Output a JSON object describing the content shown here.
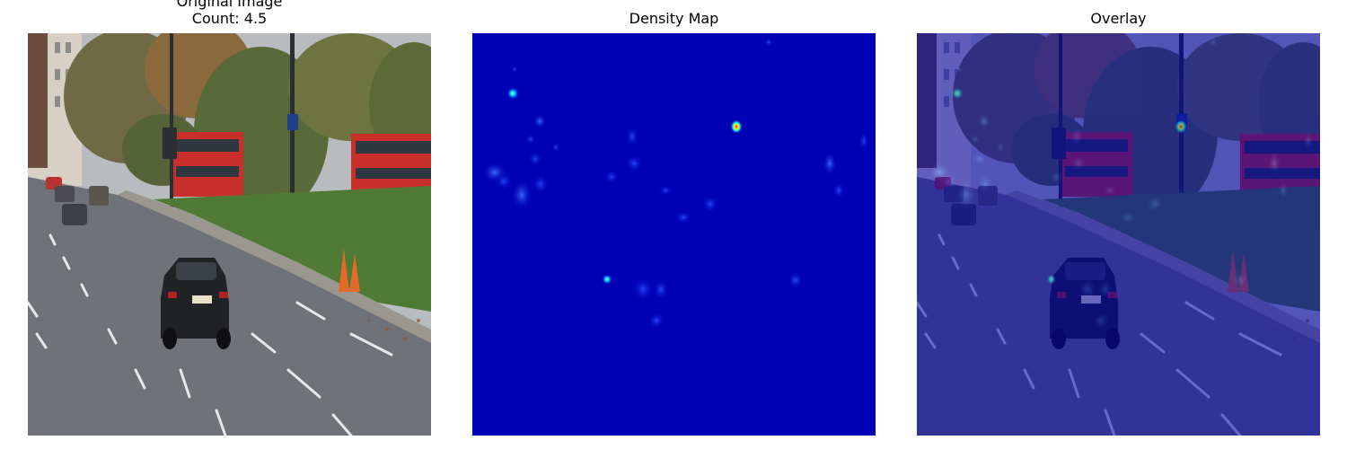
{
  "panels": {
    "original": {
      "title": "Original Image",
      "count_text": "Count: 4.5",
      "image_icon": "street-scene-photo"
    },
    "density": {
      "title": "Density Map",
      "image_icon": "density-heatmap",
      "colormap": "jet",
      "colors": {
        "background": "#0000b4",
        "hot_peak": "#ff3000",
        "warm": "#f2ff1a"
      }
    },
    "overlay": {
      "title": "Overlay",
      "image_icon": "street-scene-with-density-overlay"
    }
  }
}
